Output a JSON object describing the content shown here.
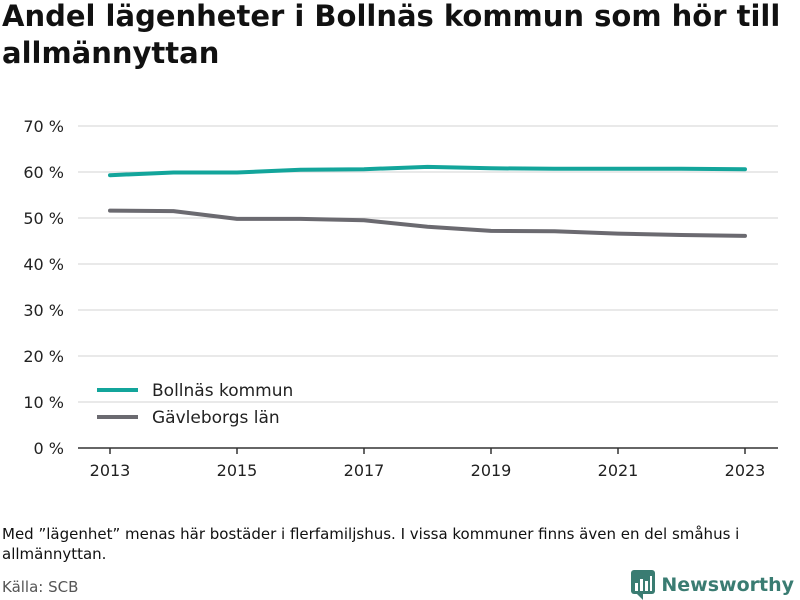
{
  "title": "Andel lägenheter i Bollnäs kommun som hör till allmännyttan",
  "note": "Med ”lägenhet” menas här bostäder i flerfamiljshus. I vissa kommuner finns även en del småhus i allmännyttan.",
  "source": "Källa: SCB",
  "brand": "Newsworthy",
  "chart_data": {
    "type": "line",
    "title": "Andel lägenheter i Bollnäs kommun som hör till allmännyttan",
    "xlabel": "",
    "ylabel": "",
    "x": [
      2013,
      2014,
      2015,
      2016,
      2017,
      2018,
      2019,
      2020,
      2021,
      2022,
      2023
    ],
    "xlim": [
      2013,
      2023
    ],
    "x_ticks": [
      "2013",
      "2015",
      "2017",
      "2019",
      "2021",
      "2023"
    ],
    "ylim": [
      0,
      70
    ],
    "y_ticks": [
      "0 %",
      "10 %",
      "20 %",
      "30 %",
      "40 %",
      "50 %",
      "60 %",
      "70 %"
    ],
    "grid": true,
    "legend_position": "bottom-left",
    "series": [
      {
        "name": "Bollnäs kommun",
        "color": "#13a59b",
        "values": [
          59.3,
          59.9,
          59.9,
          60.5,
          60.6,
          61.1,
          60.8,
          60.7,
          60.7,
          60.7,
          60.6
        ]
      },
      {
        "name": "Gävleborgs län",
        "color": "#6b6a70",
        "values": [
          51.6,
          51.5,
          49.8,
          49.8,
          49.5,
          48.1,
          47.2,
          47.1,
          46.6,
          46.3,
          46.1
        ]
      }
    ]
  }
}
